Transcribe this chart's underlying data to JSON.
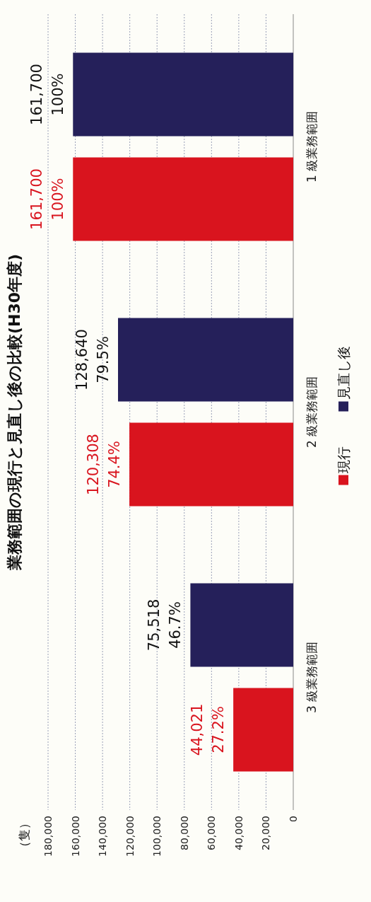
{
  "chart_data": {
    "type": "bar",
    "orientation": "horizontal",
    "title": "業務範囲の現行と見直し後の比較(H30年度)",
    "ylabel": "（隻）",
    "categories": [
      "1 級業務範囲",
      "2 級業務範囲",
      "3 級業務範囲"
    ],
    "series": [
      {
        "name": "現行",
        "color": "#d9141e",
        "values": [
          161700,
          120308,
          44021
        ],
        "value_labels": [
          "161,700\n100%",
          "120,308\n74.4%",
          "44,021\n27.2%"
        ]
      },
      {
        "name": "見直し後",
        "color": "#25205a",
        "values": [
          161700,
          128640,
          75518
        ],
        "value_labels": [
          "161,700\n100%",
          "128,640\n79.5%",
          "75,518\n46.7%"
        ]
      }
    ],
    "xlim": [
      180000,
      0
    ],
    "xticks": [
      0,
      {
        "value": 20000,
        "label": "20,000"
      },
      {
        "value": 40000,
        "label": "40,000"
      },
      {
        "value": 60000,
        "label": "60,000"
      },
      {
        "value": 80000,
        "label": "80,000"
      },
      {
        "value": 100000,
        "label": "100,000"
      },
      {
        "value": 120000,
        "label": "120,000"
      },
      {
        "value": 140000,
        "label": "140,000"
      },
      {
        "value": 160000,
        "label": "160,000"
      },
      {
        "value": 180000,
        "label": "180,000"
      }
    ],
    "grid": "x",
    "legend": "right"
  }
}
